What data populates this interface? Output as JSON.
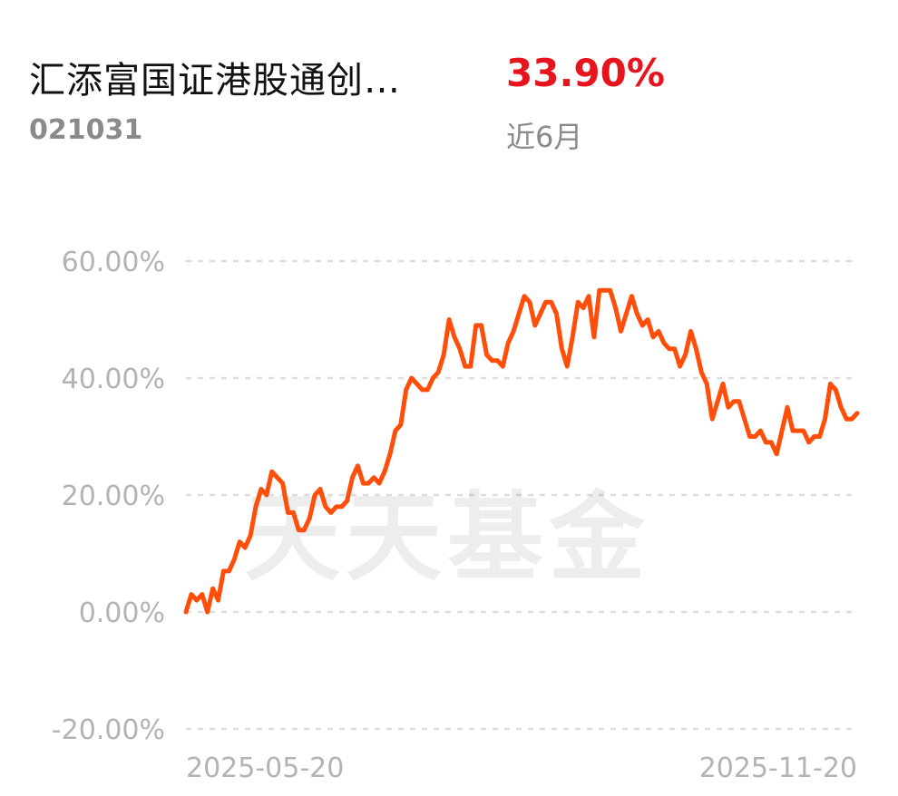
{
  "header": {
    "fund_name": "汇添富国证港股通创…",
    "fund_code": "021031",
    "return_value": "33.90%",
    "return_period": "近6月"
  },
  "watermark": "天天基金",
  "colors": {
    "line": "#ff4d0a",
    "return": "#e8141d",
    "grid": "#dddddd",
    "tick": "#b3b3b3"
  },
  "chart_data": {
    "type": "line",
    "title": "",
    "xlabel": "",
    "ylabel": "",
    "x_start_label": "2025-05-20",
    "x_end_label": "2025-11-20",
    "ylim": [
      -20,
      60
    ],
    "y_ticks": [
      -20,
      0,
      20,
      40,
      60
    ],
    "y_tick_labels": [
      "-20.00%",
      "0.00%",
      "20.00%",
      "40.00%",
      "60.00%"
    ],
    "grid": true,
    "series": [
      {
        "values": [
          0,
          3,
          2,
          3,
          0,
          4,
          2,
          7,
          7,
          9,
          12,
          11,
          13,
          18,
          21,
          20,
          24,
          23,
          22,
          17,
          17,
          14,
          14,
          16,
          20,
          21,
          18,
          17,
          18,
          18,
          19,
          23,
          25,
          22,
          22,
          23,
          22,
          24,
          27,
          31,
          32,
          38,
          40,
          39,
          38,
          38,
          40,
          41,
          44,
          50,
          47,
          45,
          42,
          42,
          49,
          49,
          44,
          43,
          43,
          42,
          46,
          48,
          51,
          54,
          53,
          49,
          51,
          53,
          53,
          51,
          45,
          42,
          47,
          53,
          52,
          54,
          47,
          55,
          55,
          55,
          52,
          48,
          51,
          54,
          51,
          49,
          50,
          47,
          48,
          46,
          45,
          45,
          42,
          44,
          48,
          45,
          41,
          39,
          33,
          36,
          39,
          35,
          36,
          36,
          33,
          30,
          30,
          31,
          29,
          29,
          27,
          31,
          35,
          31,
          31,
          31,
          29,
          30,
          30,
          33,
          39,
          38,
          35,
          33,
          33,
          34
        ]
      }
    ]
  }
}
